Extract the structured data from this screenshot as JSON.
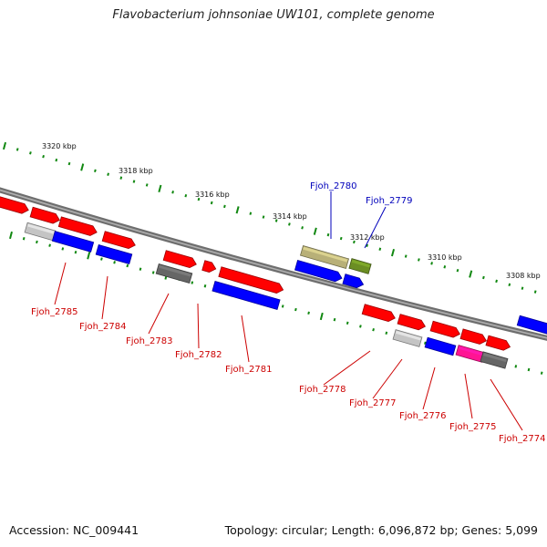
{
  "title": "Flavobacterium johnsoniae UW101, complete genome",
  "footer": {
    "accession": "Accession: NC_009441",
    "stats": "Topology: circular; Length: 6,096,872 bp; Genes: 5,099"
  },
  "colors": {
    "backbone": "#808080",
    "tick": "#118811",
    "label_forward": "#0000bb",
    "label_reverse": "#cc0000",
    "red": "#ff0000",
    "blue": "#0000ff",
    "lightgray": "#c4c4c4",
    "darkgray": "#666666",
    "khaki": "#b8b078",
    "olive": "#6b8e23",
    "magenta": "#ff1493"
  },
  "position_ticks": [
    {
      "label": "3320 kbp"
    },
    {
      "label": "3318 kbp"
    },
    {
      "label": "3316 kbp"
    },
    {
      "label": "3314 kbp"
    },
    {
      "label": "3312 kbp"
    },
    {
      "label": "3310 kbp"
    },
    {
      "label": "3308 kbp"
    }
  ],
  "gene_labels": [
    {
      "text": "Fjoh_2785",
      "strand": "reverse"
    },
    {
      "text": "Fjoh_2784",
      "strand": "reverse"
    },
    {
      "text": "Fjoh_2783",
      "strand": "reverse"
    },
    {
      "text": "Fjoh_2782",
      "strand": "reverse"
    },
    {
      "text": "Fjoh_2781",
      "strand": "reverse"
    },
    {
      "text": "Fjoh_2780",
      "strand": "forward"
    },
    {
      "text": "Fjoh_2779",
      "strand": "forward"
    },
    {
      "text": "Fjoh_2778",
      "strand": "reverse"
    },
    {
      "text": "Fjoh_2777",
      "strand": "reverse"
    },
    {
      "text": "Fjoh_2776",
      "strand": "reverse"
    },
    {
      "text": "Fjoh_2775",
      "strand": "reverse"
    },
    {
      "text": "Fjoh_2774",
      "strand": "reverse"
    }
  ]
}
